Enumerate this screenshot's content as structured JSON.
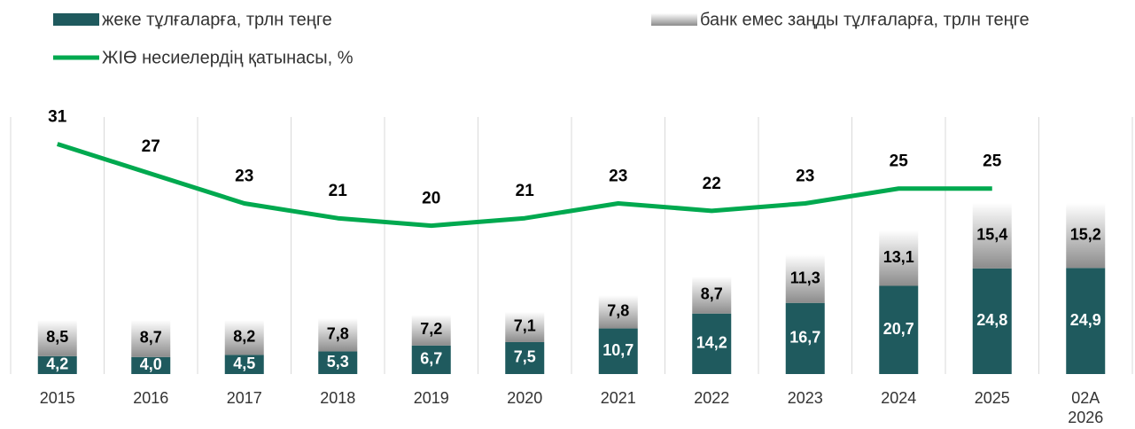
{
  "chart_data": {
    "type": "bar-line",
    "categories": [
      "2015",
      "2016",
      "2017",
      "2018",
      "2019",
      "2020",
      "2021",
      "2022",
      "2023",
      "2024",
      "2025",
      "02А 2026"
    ],
    "series": [
      {
        "name": "жеке тұлғаларға, трлн теңге",
        "color": "#1f5a5e",
        "values": [
          4.2,
          4.0,
          4.5,
          5.3,
          6.7,
          7.5,
          10.7,
          14.2,
          16.7,
          20.7,
          24.8,
          24.9
        ],
        "value_labels": [
          "4,2",
          "4,0",
          "4,5",
          "5,3",
          "6,7",
          "7,5",
          "10,7",
          "14,2",
          "16,7",
          "20,7",
          "24,8",
          "24,9"
        ]
      },
      {
        "name": "банк емес заңды тұлғаларға, трлн теңге",
        "color": "#8c8c8c",
        "values": [
          8.5,
          8.7,
          8.2,
          7.8,
          7.2,
          7.1,
          7.8,
          8.7,
          11.3,
          13.1,
          15.4,
          15.2
        ],
        "value_labels": [
          "8,5",
          "8,7",
          "8,2",
          "7,8",
          "7,2",
          "7,1",
          "7,8",
          "8,7",
          "11,3",
          "13,1",
          "15,4",
          "15,2"
        ]
      },
      {
        "name": "ЖІӨ несиелердің қатынасы, %",
        "color": "#00a94f",
        "type": "line",
        "axis": "y2",
        "values": [
          31,
          27,
          23,
          21,
          20,
          21,
          23,
          22,
          23,
          25,
          25,
          null
        ]
      }
    ],
    "ylim": [
      0,
      62
    ],
    "y2lim": [
      0,
      35.6
    ]
  }
}
